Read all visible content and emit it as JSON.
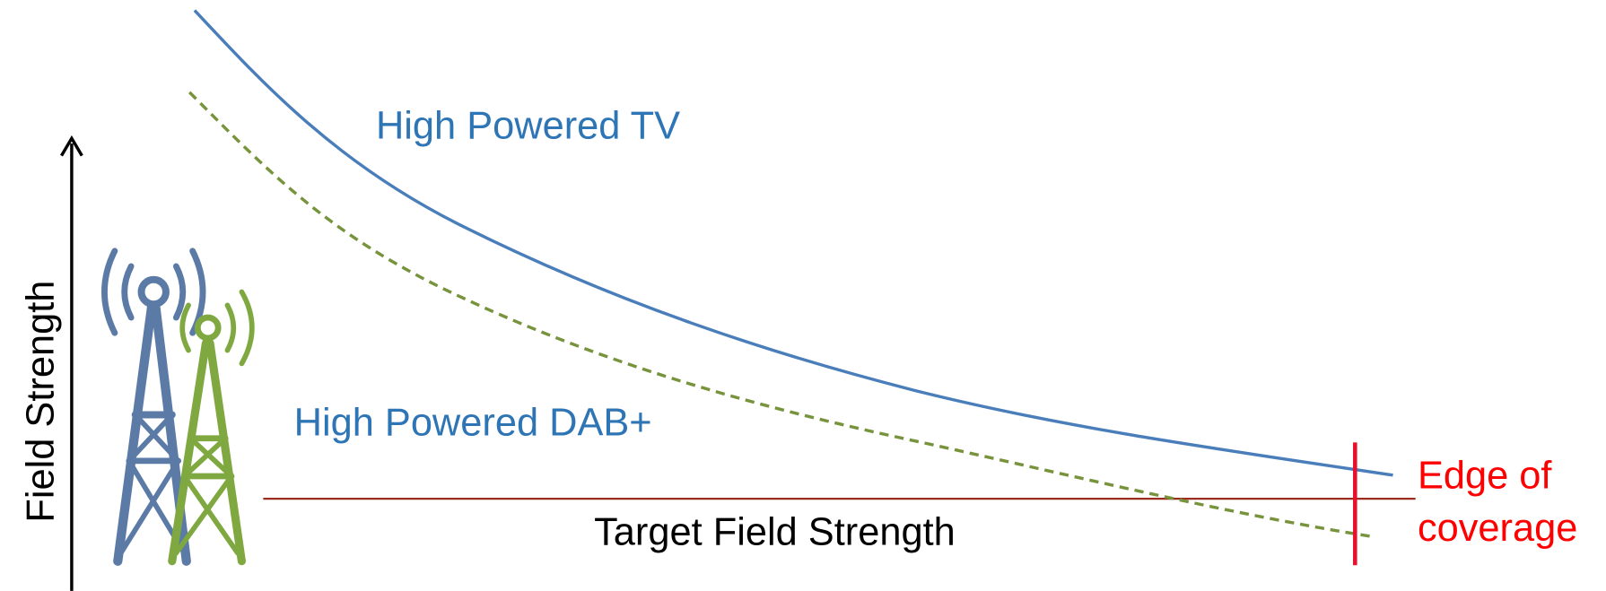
{
  "y_axis_label": "Field Strength",
  "curves": {
    "tv": "High Powered TV",
    "dab": "High Powered DAB+"
  },
  "target_label": "Target Field Strength",
  "edge_label": [
    "Edge of",
    "coverage"
  ]
}
